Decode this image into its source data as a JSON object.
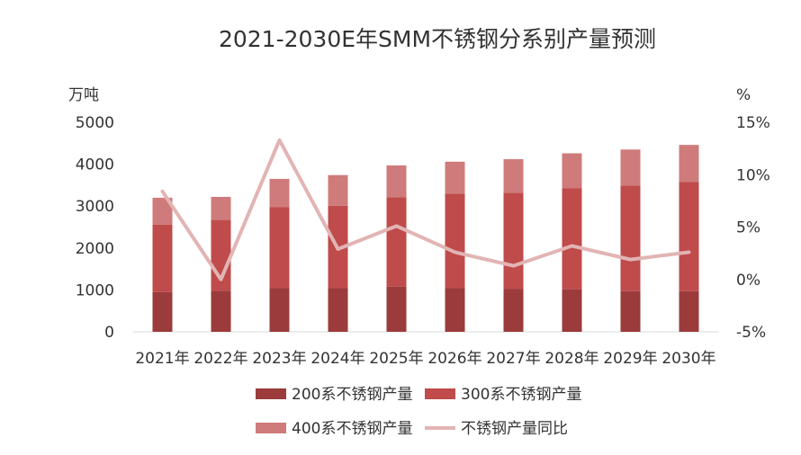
{
  "chart_data": {
    "type": "bar",
    "title": "2021-2030E年SMM不锈钢分系别产量预测",
    "y_left_unit": "万吨",
    "y_right_unit": "%",
    "categories": [
      "2021年",
      "2022年",
      "2023年",
      "2024年",
      "2025年",
      "2026年",
      "2027年",
      "2028年",
      "2029年",
      "2030年"
    ],
    "y_left_ticks": [
      "0",
      "1000",
      "2000",
      "3000",
      "4000",
      "5000"
    ],
    "y_right_ticks": [
      "-5%",
      "0%",
      "5%",
      "10%",
      "15%"
    ],
    "ylim_left": [
      0,
      5000
    ],
    "ylim_right": [
      -5,
      15
    ],
    "stacked": true,
    "series": [
      {
        "name": "200系不锈钢产量",
        "kind": "bar",
        "axis": "left",
        "color": "#9b3b3b",
        "values": [
          950,
          980,
          1040,
          1040,
          1080,
          1040,
          1020,
          1010,
          970,
          970
        ]
      },
      {
        "name": "300系不锈钢产量",
        "kind": "bar",
        "axis": "left",
        "color": "#bf4b4b",
        "values": [
          1610,
          1690,
          1940,
          1970,
          2130,
          2260,
          2300,
          2420,
          2520,
          2610
        ]
      },
      {
        "name": "400系不锈钢产量",
        "kind": "bar",
        "axis": "left",
        "color": "#cf7b7b",
        "values": [
          640,
          550,
          670,
          730,
          760,
          760,
          800,
          830,
          860,
          880
        ]
      },
      {
        "name": "不锈钢产量同比",
        "kind": "line",
        "axis": "right",
        "color": "#e2b4b4",
        "values": [
          8.4,
          0,
          13.3,
          2.9,
          5.1,
          2.6,
          1.3,
          3.2,
          1.9,
          2.6
        ]
      }
    ],
    "legend_position": "bottom"
  }
}
